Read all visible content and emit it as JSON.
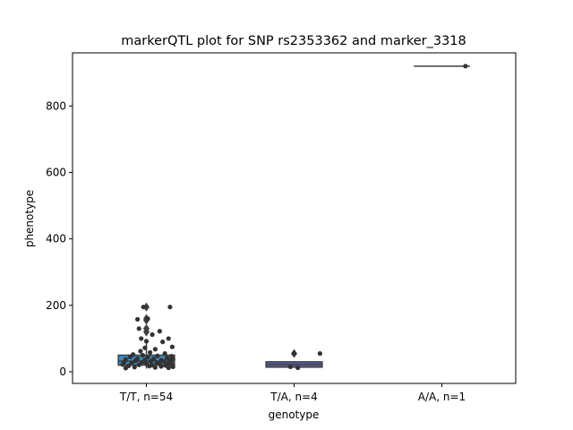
{
  "chart_data": {
    "type": "box",
    "title": "markerQTL plot for SNP rs2353362 and marker_3318",
    "xlabel": "genotype",
    "ylabel": "phenotype",
    "ylim": [
      -35,
      960
    ],
    "yticks": [
      0,
      200,
      400,
      600,
      800
    ],
    "categories": [
      "T/T, n=54",
      "T/A, n=4",
      "A/A, n=1"
    ],
    "colors": [
      "#3b8bc2",
      "#5a5fa8",
      "#4a3a7a"
    ],
    "boxes": [
      {
        "q1": 20,
        "median": 32,
        "q3": 50,
        "whisker_low": 10,
        "whisker_high": 90,
        "outliers": [
          120,
          130,
          155,
          160,
          195
        ]
      },
      {
        "q1": 14,
        "median": 22,
        "q3": 30,
        "whisker_low": 12,
        "whisker_high": 32,
        "outliers": [
          55
        ]
      },
      {
        "q1": 920,
        "median": 920,
        "q3": 920,
        "whisker_low": 920,
        "whisker_high": 920,
        "outliers": []
      }
    ],
    "points": [
      [
        {
          "x": -0.04,
          "y": 195
        },
        {
          "x": 0.32,
          "y": 195
        },
        {
          "x": -0.12,
          "y": 158
        },
        {
          "x": 0.02,
          "y": 160
        },
        {
          "x": -0.1,
          "y": 130
        },
        {
          "x": 0.18,
          "y": 122
        },
        {
          "x": 0.08,
          "y": 112
        },
        {
          "x": -0.07,
          "y": 100
        },
        {
          "x": 0.3,
          "y": 100
        },
        {
          "x": 0.0,
          "y": 92
        },
        {
          "x": 0.22,
          "y": 90
        },
        {
          "x": 0.35,
          "y": 75
        },
        {
          "x": -0.02,
          "y": 72
        },
        {
          "x": 0.12,
          "y": 68
        },
        {
          "x": -0.08,
          "y": 62
        },
        {
          "x": 0.05,
          "y": 58
        },
        {
          "x": 0.25,
          "y": 55
        },
        {
          "x": -0.18,
          "y": 52
        },
        {
          "x": -0.05,
          "y": 50
        },
        {
          "x": 0.15,
          "y": 48
        },
        {
          "x": 0.34,
          "y": 47
        },
        {
          "x": -0.22,
          "y": 45
        },
        {
          "x": 0.02,
          "y": 44
        },
        {
          "x": 0.28,
          "y": 42
        },
        {
          "x": -0.12,
          "y": 40
        },
        {
          "x": 0.1,
          "y": 39
        },
        {
          "x": 0.36,
          "y": 38
        },
        {
          "x": -0.28,
          "y": 37
        },
        {
          "x": -0.02,
          "y": 36
        },
        {
          "x": 0.2,
          "y": 35
        },
        {
          "x": 0.32,
          "y": 34
        },
        {
          "x": -0.15,
          "y": 33
        },
        {
          "x": 0.06,
          "y": 32
        },
        {
          "x": 0.24,
          "y": 31
        },
        {
          "x": -0.3,
          "y": 30
        },
        {
          "x": -0.06,
          "y": 29
        },
        {
          "x": 0.14,
          "y": 28
        },
        {
          "x": 0.3,
          "y": 27
        },
        {
          "x": -0.2,
          "y": 26
        },
        {
          "x": 0.0,
          "y": 25
        },
        {
          "x": 0.18,
          "y": 24
        },
        {
          "x": 0.34,
          "y": 23
        },
        {
          "x": -0.32,
          "y": 22
        },
        {
          "x": -0.1,
          "y": 21
        },
        {
          "x": 0.08,
          "y": 20
        },
        {
          "x": 0.26,
          "y": 19
        },
        {
          "x": -0.24,
          "y": 18
        },
        {
          "x": 0.04,
          "y": 17
        },
        {
          "x": 0.2,
          "y": 16
        },
        {
          "x": 0.36,
          "y": 15
        },
        {
          "x": -0.16,
          "y": 14
        },
        {
          "x": 0.12,
          "y": 13
        },
        {
          "x": 0.3,
          "y": 12
        },
        {
          "x": -0.28,
          "y": 11
        }
      ],
      [
        {
          "x": 0.0,
          "y": 55
        },
        {
          "x": -0.05,
          "y": 15
        },
        {
          "x": 0.05,
          "y": 12
        },
        {
          "x": 0.35,
          "y": 55
        }
      ],
      [
        {
          "x": 0.32,
          "y": 920
        }
      ]
    ]
  }
}
